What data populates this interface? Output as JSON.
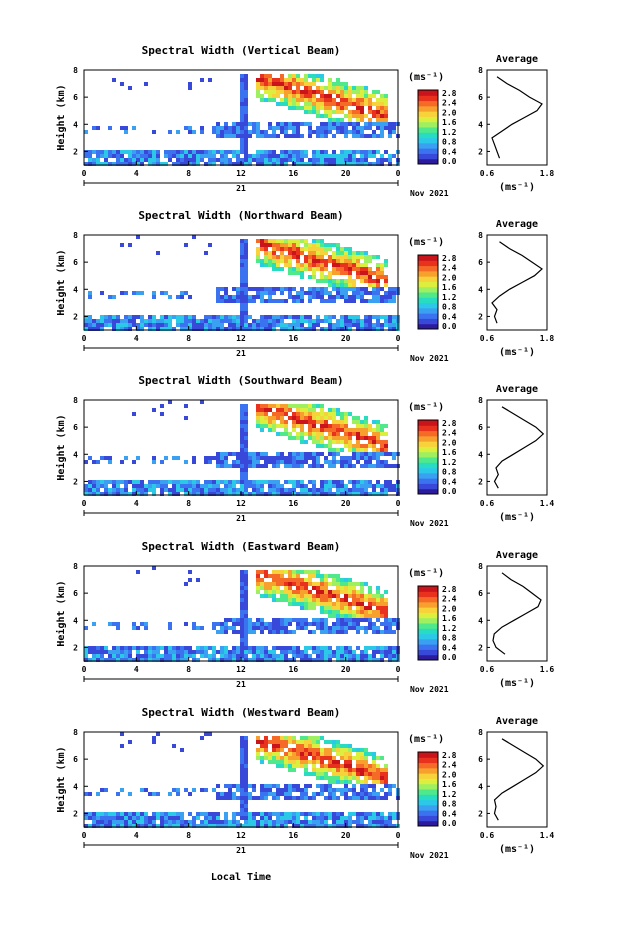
{
  "figure": {
    "xlabel": "Local Time",
    "date_label": "Nov 2021",
    "day_label": "21",
    "unit_label": "(ms⁻¹)",
    "avg_xlabel": "(ms⁻¹)",
    "avg_title": "Average",
    "ylabel": "Height (km)",
    "colorbar_ticks": [
      "2.8",
      "2.4",
      "2.0",
      "1.6",
      "1.2",
      "0.8",
      "0.4",
      "0.0"
    ],
    "colors": [
      "#2d1b9e",
      "#3848d8",
      "#3a72f0",
      "#3aa0f2",
      "#2cc8e8",
      "#27dcc0",
      "#4fe88a",
      "#9ef061",
      "#dcee3e",
      "#f8d23a",
      "#f8a02e",
      "#f46a26",
      "#e8321e",
      "#c8141a"
    ]
  },
  "chart_data": [
    {
      "type": "heatmap",
      "title": "Spectral Width (Vertical Beam)",
      "x_ticks": [
        "0",
        "4",
        "8",
        "12",
        "16",
        "20",
        "0"
      ],
      "xlim": [
        0,
        24
      ],
      "y_ticks": [
        "2",
        "4",
        "6",
        "8"
      ],
      "ylim": [
        1,
        8
      ],
      "colorbar_range": [
        0.0,
        2.8
      ],
      "average_profile": {
        "x_ticks": [
          "0.6",
          "1.8"
        ],
        "xlim": [
          0.6,
          1.8
        ],
        "heights": [
          1.5,
          2.0,
          2.5,
          3.0,
          3.5,
          4.0,
          4.5,
          5.0,
          5.5,
          6.0,
          6.5,
          7.0,
          7.5
        ],
        "values": [
          0.85,
          0.8,
          0.75,
          0.7,
          0.9,
          1.1,
          1.35,
          1.6,
          1.7,
          1.45,
          1.25,
          1.0,
          0.8
        ]
      }
    },
    {
      "type": "heatmap",
      "title": "Spectral Width (Northward Beam)",
      "x_ticks": [
        "0",
        "4",
        "8",
        "12",
        "16",
        "20",
        "0"
      ],
      "xlim": [
        0,
        24
      ],
      "y_ticks": [
        "2",
        "4",
        "6",
        "8"
      ],
      "ylim": [
        1,
        8
      ],
      "colorbar_range": [
        0.0,
        2.8
      ],
      "average_profile": {
        "x_ticks": [
          "0.6",
          "1.8"
        ],
        "xlim": [
          0.6,
          1.8
        ],
        "heights": [
          1.5,
          2.0,
          2.5,
          3.0,
          3.5,
          4.0,
          4.5,
          5.0,
          5.5,
          6.0,
          6.5,
          7.0,
          7.5
        ],
        "values": [
          0.8,
          0.75,
          0.8,
          0.7,
          0.85,
          1.05,
          1.3,
          1.55,
          1.7,
          1.5,
          1.3,
          1.05,
          0.85
        ]
      }
    },
    {
      "type": "heatmap",
      "title": "Spectral Width (Southward Beam)",
      "x_ticks": [
        "0",
        "4",
        "8",
        "12",
        "16",
        "20",
        "0"
      ],
      "xlim": [
        0,
        24
      ],
      "y_ticks": [
        "2",
        "4",
        "6",
        "8"
      ],
      "ylim": [
        1,
        8
      ],
      "colorbar_range": [
        0.0,
        2.8
      ],
      "average_profile": {
        "x_ticks": [
          "0.6",
          "1.4"
        ],
        "xlim": [
          0.6,
          1.4
        ],
        "heights": [
          1.5,
          2.0,
          2.5,
          3.0,
          3.5,
          4.0,
          4.5,
          5.0,
          5.5,
          6.0,
          6.5,
          7.0,
          7.5
        ],
        "values": [
          0.75,
          0.7,
          0.75,
          0.72,
          0.8,
          0.95,
          1.1,
          1.25,
          1.35,
          1.25,
          1.1,
          0.95,
          0.8
        ]
      }
    },
    {
      "type": "heatmap",
      "title": "Spectral Width (Eastward Beam)",
      "x_ticks": [
        "0",
        "4",
        "8",
        "12",
        "16",
        "20",
        "0"
      ],
      "xlim": [
        0,
        24
      ],
      "y_ticks": [
        "2",
        "4",
        "6",
        "8"
      ],
      "ylim": [
        1,
        8
      ],
      "colorbar_range": [
        0.0,
        2.8
      ],
      "average_profile": {
        "x_ticks": [
          "0.6",
          "1.6"
        ],
        "xlim": [
          0.6,
          1.6
        ],
        "heights": [
          1.5,
          2.0,
          2.5,
          3.0,
          3.5,
          4.0,
          4.5,
          5.0,
          5.5,
          6.0,
          6.5,
          7.0,
          7.5
        ],
        "values": [
          0.9,
          0.75,
          0.7,
          0.72,
          0.85,
          1.05,
          1.25,
          1.45,
          1.5,
          1.35,
          1.2,
          1.0,
          0.85
        ]
      }
    },
    {
      "type": "heatmap",
      "title": "Spectral Width (Westward Beam)",
      "x_ticks": [
        "0",
        "4",
        "8",
        "12",
        "16",
        "20",
        "0"
      ],
      "xlim": [
        0,
        24
      ],
      "y_ticks": [
        "2",
        "4",
        "6",
        "8"
      ],
      "ylim": [
        1,
        8
      ],
      "colorbar_range": [
        0.0,
        2.8
      ],
      "average_profile": {
        "x_ticks": [
          "0.6",
          "1.4"
        ],
        "xlim": [
          0.6,
          1.4
        ],
        "heights": [
          1.5,
          2.0,
          2.5,
          3.0,
          3.5,
          4.0,
          4.5,
          5.0,
          5.5,
          6.0,
          6.5,
          7.0,
          7.5
        ],
        "values": [
          0.75,
          0.7,
          0.72,
          0.7,
          0.8,
          0.95,
          1.1,
          1.25,
          1.35,
          1.25,
          1.1,
          0.95,
          0.8
        ]
      }
    }
  ]
}
